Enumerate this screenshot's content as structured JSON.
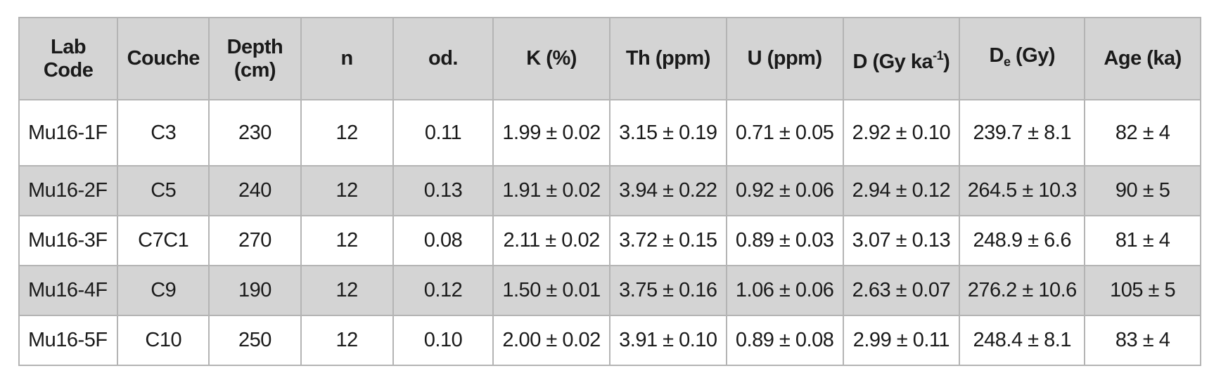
{
  "header": {
    "lab_code_1": "Lab",
    "lab_code_2": "Code",
    "couche": "Couche",
    "depth_1": "Depth",
    "depth_2": "(cm)",
    "n": "n",
    "od": "od.",
    "k": "K (%)",
    "th": "Th (ppm)",
    "u": "U (ppm)",
    "d_main": "D (Gy ka",
    "d_sup": "-1",
    "d_close": ")",
    "de_main": "D",
    "de_sub": "e",
    "de_rest": " (Gy)",
    "age": "Age (ka)"
  },
  "rows": [
    {
      "lab": "Mu16-1F",
      "couche": "C3",
      "depth": "230",
      "n": "12",
      "od": "0.11",
      "k": "1.99 ± 0.02",
      "th": "3.15 ± 0.19",
      "u": "0.71 ± 0.05",
      "d": "2.92 ± 0.10",
      "de": "239.7 ± 8.1",
      "age": "82 ± 4"
    },
    {
      "lab": "Mu16-2F",
      "couche": "C5",
      "depth": "240",
      "n": "12",
      "od": "0.13",
      "k": "1.91 ± 0.02",
      "th": "3.94 ± 0.22",
      "u": "0.92 ± 0.06",
      "d": "2.94 ± 0.12",
      "de": "264.5 ± 10.3",
      "age": "90 ± 5"
    },
    {
      "lab": "Mu16-3F",
      "couche": "C7C1",
      "depth": "270",
      "n": "12",
      "od": "0.08",
      "k": "2.11 ± 0.02",
      "th": "3.72 ± 0.15",
      "u": "0.89 ± 0.03",
      "d": "3.07 ± 0.13",
      "de": "248.9 ± 6.6",
      "age": "81 ± 4"
    },
    {
      "lab": "Mu16-4F",
      "couche": "C9",
      "depth": "190",
      "n": "12",
      "od": "0.12",
      "k": "1.50 ± 0.01",
      "th": "3.75 ± 0.16",
      "u": "1.06 ± 0.06",
      "d": "2.63 ± 0.07",
      "de": "276.2 ± 10.6",
      "age": "105 ± 5"
    },
    {
      "lab": "Mu16-5F",
      "couche": "C10",
      "depth": "250",
      "n": "12",
      "od": "0.10",
      "k": "2.00 ± 0.02",
      "th": "3.91 ± 0.10",
      "u": "0.89 ± 0.08",
      "d": "2.99 ± 0.11",
      "de": "248.4 ± 8.1",
      "age": "83 ± 4"
    }
  ],
  "colors": {
    "header_bg": "#d4d4d4",
    "shaded_row_bg": "#d4d4d4",
    "border": "#b4b4b4"
  }
}
